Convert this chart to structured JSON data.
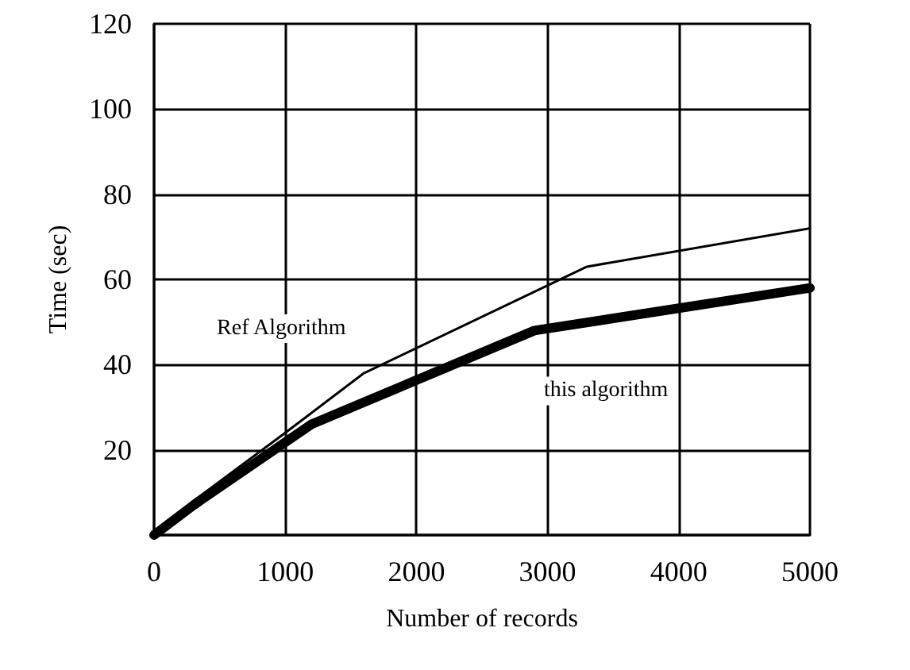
{
  "chart_data": {
    "type": "line",
    "xlabel": "Number of records",
    "ylabel": "Time (sec)",
    "xlim": [
      0,
      5000
    ],
    "xticks": [
      0,
      1000,
      2000,
      3000,
      4000,
      5000
    ],
    "ylim": [
      0,
      120
    ],
    "yticks": [
      {
        "value": 0,
        "label": null
      },
      20,
      40,
      60,
      80,
      100,
      120
    ],
    "grid": true,
    "legend": false,
    "marker": "none",
    "line_style": "solid",
    "series": [
      {
        "name": "Ref Algorithm",
        "color": "#000000",
        "x": [
          0,
          300,
          1000,
          1600,
          3300,
          5000
        ],
        "values": [
          0,
          8,
          24,
          38,
          63,
          72
        ]
      },
      {
        "name": "this algorithm",
        "color": "#000000",
        "x": [
          0,
          300,
          1200,
          2900,
          5000
        ],
        "values": [
          0,
          7,
          26,
          48,
          58
        ]
      }
    ]
  }
}
